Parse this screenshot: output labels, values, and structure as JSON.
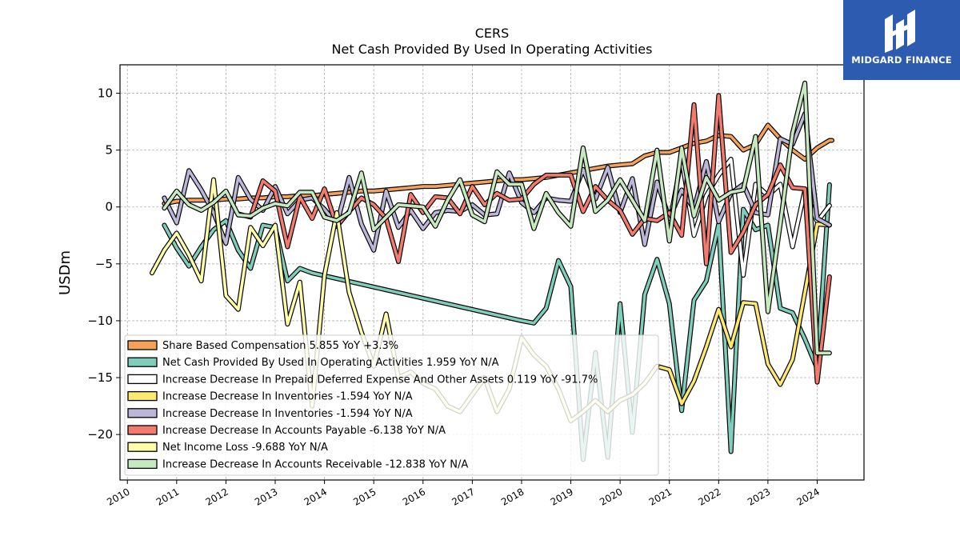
{
  "header": {
    "ticker": "CERS",
    "subtitle": "Net Cash Provided By Used In Operating Activities"
  },
  "brand": {
    "name": "MIDGARD FINANCE",
    "icon": "midgard-logo-icon",
    "color": "#2d5bb0"
  },
  "chart_data": {
    "type": "line",
    "title": "CERS",
    "subtitle": "Net Cash Provided By Used In Operating Activities",
    "ylabel": "USDm",
    "xlabel": "",
    "xlim": [
      2009.85,
      2024.95
    ],
    "ylim": [
      -24,
      12.5
    ],
    "yticks": [
      10,
      5,
      0,
      -5,
      -10,
      -15,
      -20
    ],
    "xticks": [
      2010,
      2011,
      2012,
      2013,
      2014,
      2015,
      2016,
      2017,
      2018,
      2019,
      2020,
      2021,
      2022,
      2023,
      2024
    ],
    "grid": true,
    "legend_position": "lower-left",
    "series": [
      {
        "name": "Share Based Compensation",
        "legend": "Share Based Compensation  5.855 YoY +3.3%",
        "color": "#f4a259",
        "x": [
          2010.75,
          2011.0,
          2011.25,
          2011.5,
          2011.75,
          2012.0,
          2012.25,
          2012.5,
          2012.75,
          2013.0,
          2013.25,
          2013.5,
          2013.75,
          2014.0,
          2014.25,
          2014.5,
          2014.75,
          2015.0,
          2015.25,
          2015.5,
          2015.75,
          2016.0,
          2016.25,
          2016.5,
          2016.75,
          2017.0,
          2017.25,
          2017.5,
          2017.75,
          2018.0,
          2018.25,
          2018.5,
          2018.75,
          2019.0,
          2019.25,
          2019.5,
          2019.75,
          2020.0,
          2020.25,
          2020.5,
          2020.75,
          2021.0,
          2021.25,
          2021.5,
          2021.75,
          2022.0,
          2022.25,
          2022.5,
          2022.75,
          2023.0,
          2023.25,
          2023.5,
          2023.75,
          2024.0,
          2024.25,
          2024.3
        ],
        "y": [
          0.3,
          0.5,
          0.6,
          0.6,
          0.6,
          0.7,
          0.7,
          0.8,
          0.8,
          0.9,
          0.9,
          1.0,
          1.0,
          1.1,
          1.2,
          1.3,
          1.4,
          1.4,
          1.5,
          1.6,
          1.7,
          1.8,
          1.8,
          1.9,
          2.0,
          2.1,
          2.2,
          2.3,
          2.4,
          2.4,
          2.5,
          2.6,
          2.8,
          3.0,
          3.2,
          3.4,
          3.6,
          3.7,
          3.8,
          4.5,
          4.8,
          4.8,
          5.2,
          5.6,
          5.8,
          6.3,
          6.2,
          5.0,
          5.5,
          7.2,
          6.0,
          5.0,
          4.2,
          5.2,
          5.855,
          5.855
        ]
      },
      {
        "name": "Net Cash Provided By Used In Operating Activities",
        "legend": "Net Cash Provided By Used In Operating Activities  1.959 YoY N/A",
        "color": "#7fcdbb",
        "x": [
          2010.75,
          2011.0,
          2011.25,
          2011.5,
          2011.75,
          2012.0,
          2012.25,
          2012.5,
          2012.75,
          2013.0,
          2013.25,
          2013.5,
          2013.75,
          2018.0,
          2018.25,
          2018.5,
          2018.75,
          2019.0,
          2019.25,
          2019.5,
          2019.75,
          2020.0,
          2020.25,
          2020.5,
          2020.75,
          2021.0,
          2021.25,
          2021.5,
          2021.75,
          2022.0,
          2022.25,
          2022.5,
          2022.75,
          2023.0,
          2023.25,
          2023.5,
          2023.75,
          2024.0,
          2024.25
        ],
        "y": [
          -1.6,
          -3.6,
          -5.2,
          -3.5,
          -2.0,
          -1.2,
          -3.8,
          -5.4,
          -1.6,
          -1.8,
          -6.5,
          -5.4,
          -5.8,
          -10.0,
          -10.2,
          -8.9,
          -4.7,
          -7.0,
          -22.2,
          -12.8,
          -22.0,
          -8.5,
          -19.8,
          -7.7,
          -4.6,
          -8.5,
          -17.9,
          -8.2,
          -6.5,
          -1.5,
          -21.5,
          -0.2,
          -2.0,
          -1.6,
          -8.9,
          -9.3,
          -11.6,
          -14.2,
          1.959
        ]
      },
      {
        "name": "Increase Decrease In Prepaid Deferred Expense And Other Assets",
        "legend": "Increase Decrease In Prepaid Deferred Expense And Other Assets  0.119 YoY -91.7%",
        "color": "#ffffff",
        "x": [
          2021.0,
          2021.25,
          2021.5,
          2021.75,
          2022.0,
          2022.25,
          2022.5,
          2022.75,
          2023.0,
          2023.25,
          2023.5,
          2023.75,
          2024.0,
          2024.25
        ],
        "y": [
          -1.5,
          4.3,
          -2.5,
          1.0,
          2.8,
          4.2,
          -6.0,
          2.0,
          1.0,
          2.0,
          -3.5,
          1.5,
          -1.3,
          0.119
        ]
      },
      {
        "name": "Increase Decrease In Inventories",
        "legend": "Increase Decrease In Inventories  -1.594 YoY N/A",
        "color": "#fde96f",
        "x": [
          2020.75,
          2021.0,
          2021.25,
          2021.5,
          2021.75,
          2022.0,
          2022.25,
          2022.5,
          2022.75,
          2023.0,
          2023.25,
          2023.5,
          2023.75,
          2024.0,
          2024.25
        ],
        "y": [
          -14.0,
          -14.3,
          -17.3,
          -15.3,
          -12.3,
          -9.0,
          -12.3,
          -8.4,
          -8.5,
          -13.8,
          -15.6,
          -13.4,
          -7.5,
          -1.5,
          -1.594
        ]
      },
      {
        "name": "Increase Decrease In Inventories",
        "legend": "Increase Decrease In Inventories  -1.594 YoY N/A",
        "color": "#bcb6d8",
        "x": [
          2010.75,
          2011.0,
          2011.25,
          2011.5,
          2011.75,
          2012.0,
          2012.25,
          2012.5,
          2012.75,
          2013.0,
          2013.25,
          2013.5,
          2013.75,
          2014.0,
          2014.25,
          2014.5,
          2014.75,
          2015.0,
          2015.25,
          2015.5,
          2015.75,
          2016.0,
          2016.25,
          2016.5,
          2016.75,
          2017.0,
          2017.25,
          2017.5,
          2017.75,
          2018.0,
          2018.25,
          2018.5,
          2018.75,
          2019.0,
          2019.25,
          2019.5,
          2019.75,
          2020.0,
          2020.25,
          2020.5,
          2020.75,
          2021.0,
          2021.25,
          2021.5,
          2021.75,
          2022.0,
          2022.25,
          2022.5,
          2022.75,
          2023.0,
          2023.25,
          2023.5,
          2023.75,
          2024.0,
          2024.25
        ],
        "y": [
          0.8,
          -1.4,
          3.2,
          1.5,
          -0.5,
          -3.2,
          2.6,
          0.7,
          -0.3,
          1.8,
          -0.6,
          0.6,
          0.8,
          -0.2,
          -1.5,
          2.6,
          -1.5,
          -3.8,
          1.4,
          -1.8,
          -0.3,
          -1.9,
          -0.5,
          -0.3,
          -0.4,
          0.2,
          -0.7,
          -0.6,
          3.0,
          0.4,
          -0.5,
          0.8,
          0.6,
          0.5,
          3.3,
          0.7,
          3.5,
          -0.5,
          2.5,
          -3.3,
          2.2,
          -1.0,
          1.5,
          -0.2,
          4.0,
          -1.3,
          1.2,
          2.0,
          -0.5,
          -0.7,
          6.0,
          5.5,
          8.2,
          -1.0,
          -1.594
        ]
      },
      {
        "name": "Increase Decrease In Accounts Payable",
        "legend": "Increase Decrease In Accounts Payable  -6.138 YoY N/A",
        "color": "#f27b6e",
        "x": [
          2012.25,
          2012.5,
          2012.75,
          2013.0,
          2013.25,
          2013.5,
          2013.75,
          2014.0,
          2014.25,
          2014.5,
          2014.75,
          2015.0,
          2015.25,
          2015.5,
          2015.75,
          2016.0,
          2016.25,
          2016.5,
          2016.75,
          2017.0,
          2017.25,
          2017.5,
          2017.75,
          2018.0,
          2018.25,
          2018.5,
          2018.75,
          2019.0,
          2019.25,
          2019.5,
          2019.75,
          2020.0,
          2020.25,
          2020.5,
          2020.75,
          2021.0,
          2021.25,
          2021.5,
          2021.75,
          2022.0,
          2022.25,
          2022.5,
          2022.75,
          2023.0,
          2023.25,
          2023.5,
          2023.75,
          2024.0,
          2024.25
        ],
        "y": [
          -0.6,
          -0.9,
          2.3,
          1.4,
          -3.5,
          0.9,
          -1.0,
          1.6,
          -1.7,
          -0.4,
          0.8,
          0.2,
          -1.0,
          -4.8,
          1.1,
          -0.5,
          0.9,
          0.8,
          -0.6,
          1.8,
          0.2,
          1.2,
          0.6,
          0.7,
          2.0,
          2.8,
          2.8,
          2.8,
          -0.4,
          1.8,
          0.6,
          -0.3,
          -2.4,
          -1.0,
          -1.2,
          -0.5,
          -2.5,
          9.0,
          -5.0,
          9.8,
          -4.0,
          -2.2,
          0.2,
          1.1,
          3.7,
          1.7,
          1.6,
          -15.4,
          -6.138
        ]
      },
      {
        "name": "Net Income Loss",
        "legend": "Net Income Loss  -9.688 YoY N/A",
        "color": "#ffffa9",
        "x": [
          2010.5,
          2010.75,
          2011.0,
          2011.25,
          2011.5,
          2011.75,
          2012.0,
          2012.25,
          2012.5,
          2012.75,
          2013.0,
          2013.25,
          2013.5,
          2013.75,
          2014.0,
          2014.25,
          2014.5,
          2014.75,
          2015.0,
          2015.25,
          2015.5,
          2015.75,
          2016.0,
          2016.25,
          2016.5,
          2016.75,
          2017.0,
          2017.25,
          2017.5,
          2017.75,
          2018.0,
          2018.25,
          2018.5,
          2018.75,
          2019.0,
          2019.25,
          2019.5,
          2019.75,
          2020.0,
          2020.25,
          2020.5,
          2020.75
        ],
        "y": [
          -5.8,
          -3.8,
          -2.3,
          -4.2,
          -6.5,
          2.4,
          -7.8,
          -9.0,
          -1.8,
          -3.4,
          -1.6,
          -10.3,
          -6.6,
          -17.5,
          -6.0,
          -0.5,
          -7.5,
          -11.0,
          -14.0,
          -9.4,
          -15.0,
          -14.5,
          -15.5,
          -16.0,
          -17.5,
          -18.0,
          -16.5,
          -15.0,
          -18.0,
          -16.0,
          -11.5,
          -13.0,
          -14.0,
          -16.0,
          -18.8,
          -18.0,
          -17.0,
          -18.0,
          -17.0,
          -16.5,
          -15.5,
          -14.0
        ]
      },
      {
        "name": "Increase Decrease In Accounts Receivable",
        "legend": "Increase Decrease In Accounts Receivable  -12.838 YoY N/A",
        "color": "#c7e9c0",
        "x": [
          2010.75,
          2011.0,
          2011.25,
          2011.5,
          2011.75,
          2012.0,
          2012.25,
          2012.5,
          2012.75,
          2013.0,
          2013.25,
          2013.5,
          2013.75,
          2014.0,
          2014.25,
          2014.5,
          2014.75,
          2015.0,
          2015.25,
          2015.5,
          2015.75,
          2016.0,
          2016.25,
          2016.5,
          2016.75,
          2017.0,
          2017.25,
          2017.5,
          2017.75,
          2018.0,
          2018.25,
          2018.5,
          2018.75,
          2019.0,
          2019.25,
          2019.5,
          2019.75,
          2020.0,
          2020.25,
          2020.5,
          2020.75,
          2021.0,
          2021.25,
          2021.5,
          2021.75,
          2022.0,
          2022.25,
          2022.5,
          2022.75,
          2023.0,
          2023.25,
          2023.5,
          2023.75,
          2024.0,
          2024.25
        ],
        "y": [
          -0.1,
          1.4,
          0.2,
          -0.3,
          0.4,
          1.4,
          -0.7,
          -0.8,
          -0.1,
          0.3,
          0.1,
          1.3,
          1.3,
          -0.9,
          -1.2,
          -0.5,
          3.0,
          -2.0,
          -0.9,
          0.2,
          0.1,
          0.0,
          -1.7,
          0.6,
          2.4,
          -0.7,
          -1.3,
          3.1,
          2.0,
          2.0,
          -1.9,
          1.2,
          -0.5,
          -1.7,
          5.2,
          -0.4,
          0.6,
          2.4,
          0.6,
          -1.2,
          5.0,
          -3.0,
          5.2,
          -0.8,
          2.6,
          0.6,
          1.3,
          1.5,
          6.2,
          -9.2,
          -1.5,
          6.5,
          10.9,
          -12.838,
          -12.838
        ]
      }
    ]
  }
}
